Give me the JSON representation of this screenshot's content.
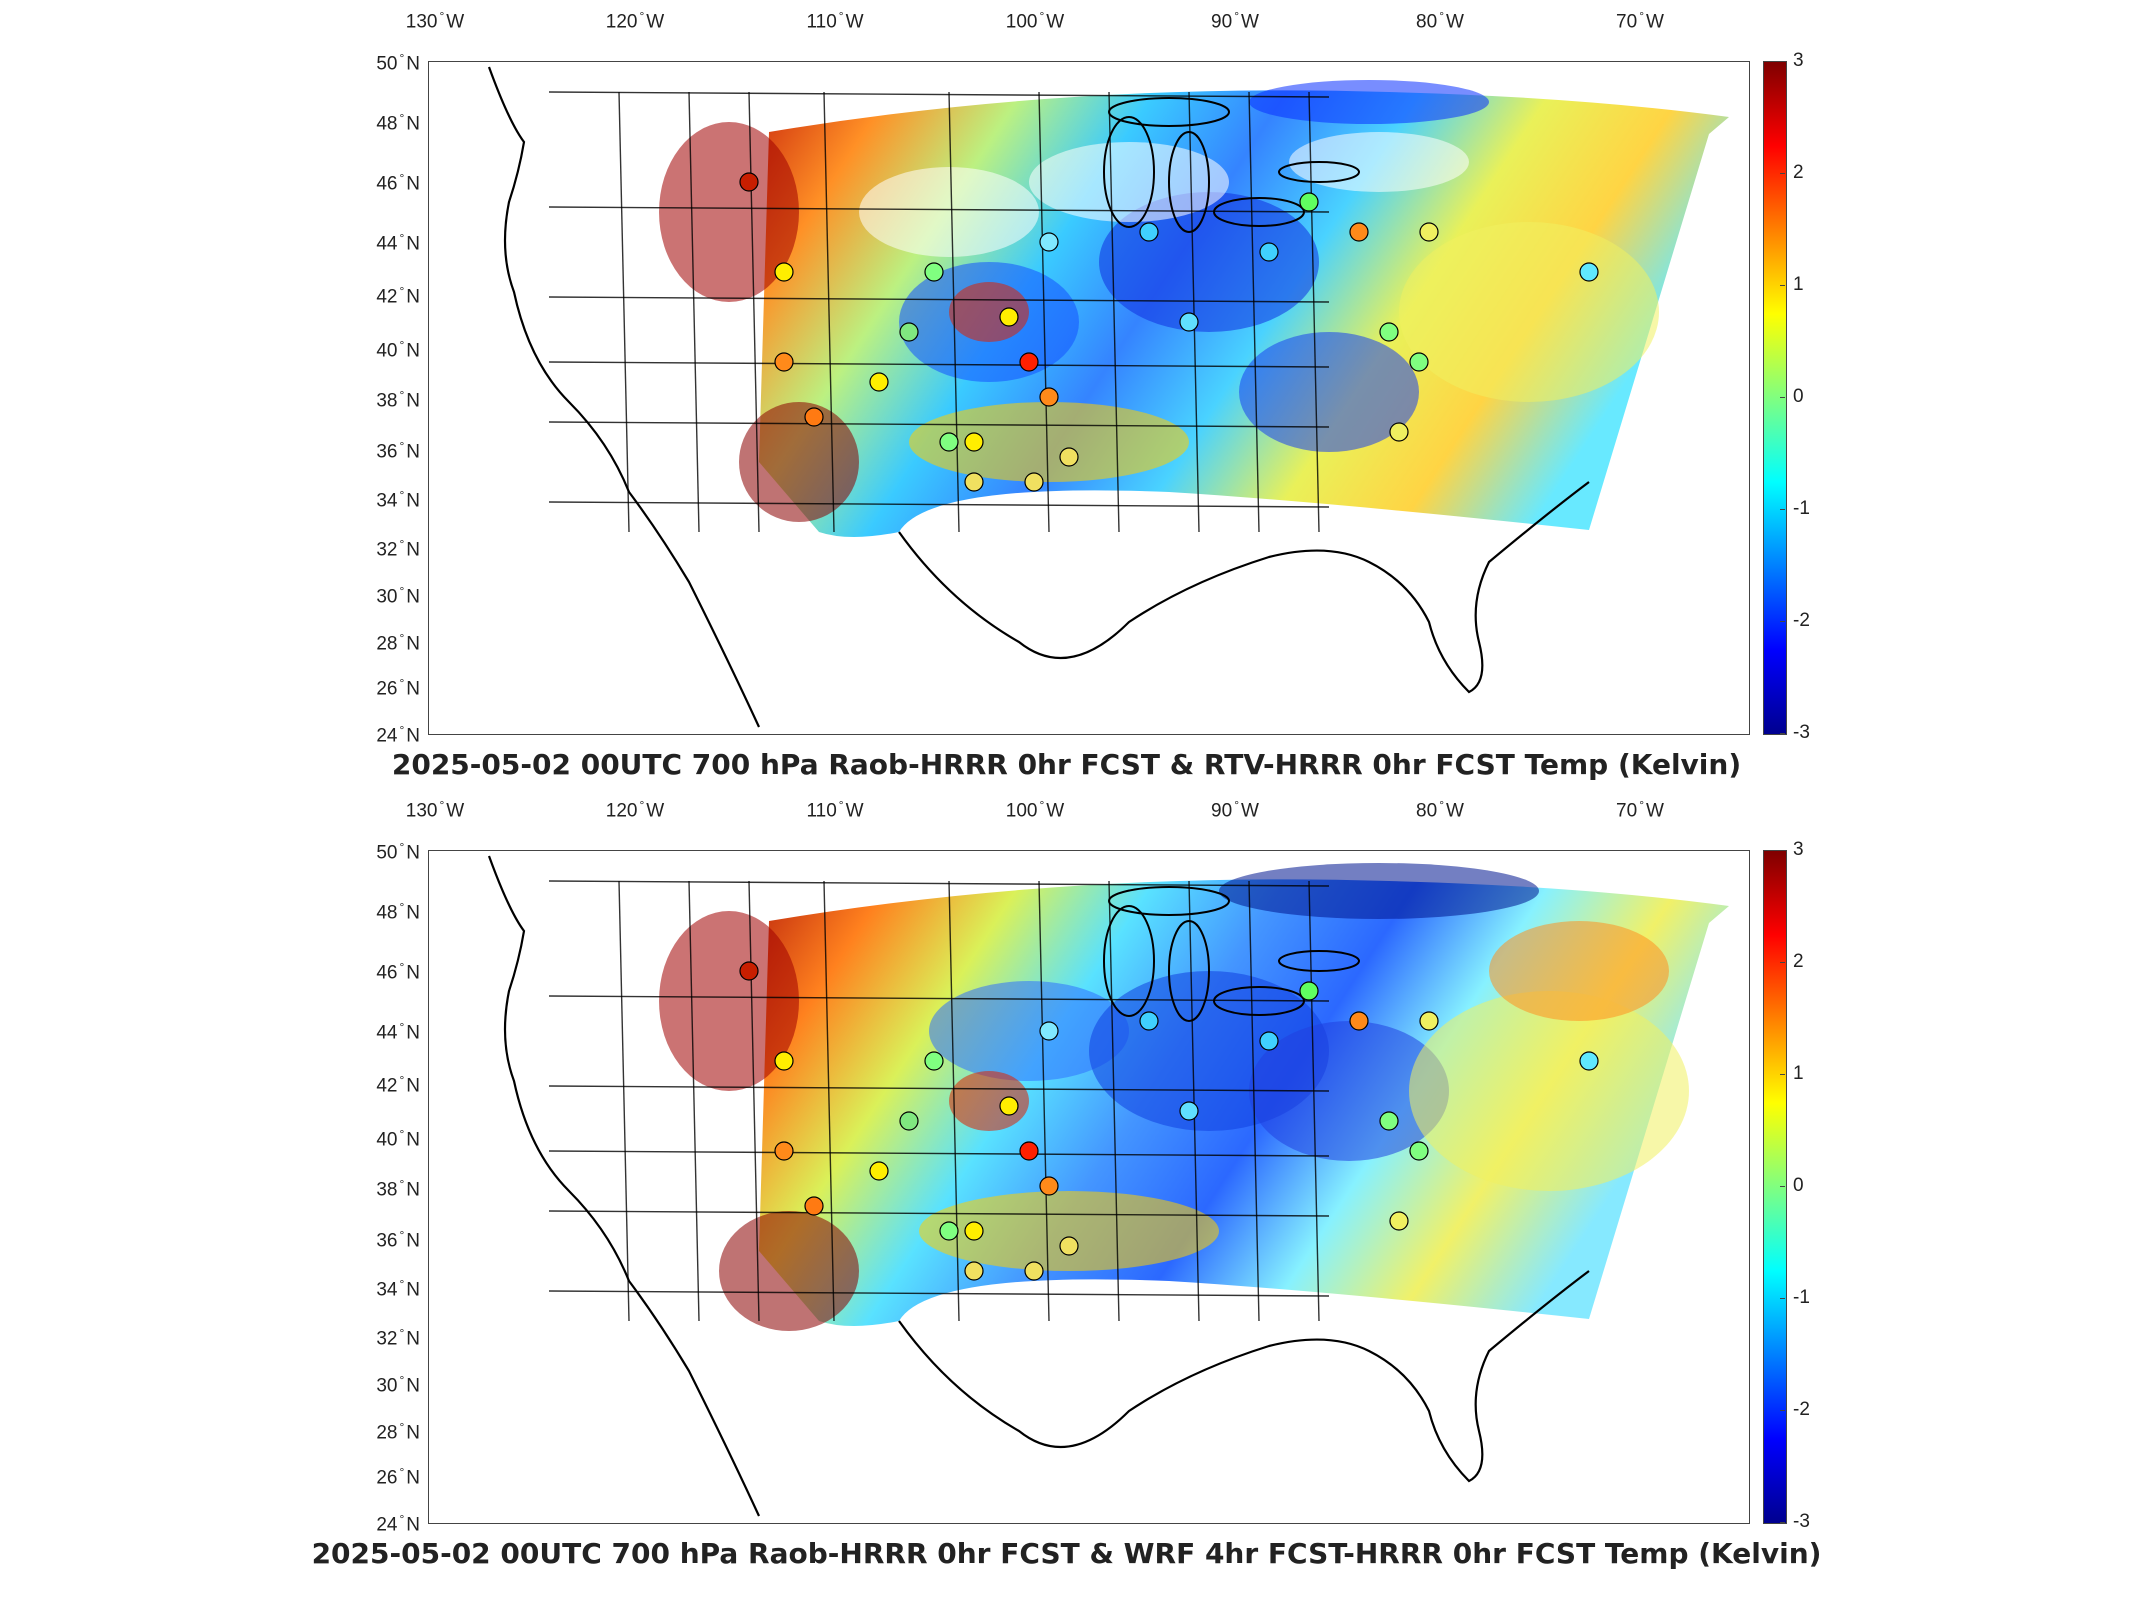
{
  "colorbar": {
    "min": -3,
    "max": 3,
    "ticks": [
      "3",
      "2",
      "1",
      "0",
      "-1",
      "-2",
      "-3"
    ],
    "colors": [
      "#7f0000",
      "#ff0000",
      "#ff8000",
      "#ffff00",
      "#80ff80",
      "#00ffff",
      "#0080ff",
      "#0000ff",
      "#00008f"
    ]
  },
  "lon_labels": [
    {
      "deg": "130",
      "dir": "W"
    },
    {
      "deg": "120",
      "dir": "W"
    },
    {
      "deg": "110",
      "dir": "W"
    },
    {
      "deg": "100",
      "dir": "W"
    },
    {
      "deg": "90",
      "dir": "W"
    },
    {
      "deg": "80",
      "dir": "W"
    },
    {
      "deg": "70",
      "dir": "W"
    }
  ],
  "lat_labels": [
    {
      "deg": "50",
      "dir": "N"
    },
    {
      "deg": "48",
      "dir": "N"
    },
    {
      "deg": "46",
      "dir": "N"
    },
    {
      "deg": "44",
      "dir": "N"
    },
    {
      "deg": "42",
      "dir": "N"
    },
    {
      "deg": "40",
      "dir": "N"
    },
    {
      "deg": "38",
      "dir": "N"
    },
    {
      "deg": "36",
      "dir": "N"
    },
    {
      "deg": "34",
      "dir": "N"
    },
    {
      "deg": "32",
      "dir": "N"
    },
    {
      "deg": "30",
      "dir": "N"
    },
    {
      "deg": "28",
      "dir": "N"
    },
    {
      "deg": "26",
      "dir": "N"
    },
    {
      "deg": "24",
      "dir": "N"
    }
  ],
  "panels": [
    {
      "title": "2025-05-02 00UTC 700 hPa Raob-HRRR 0hr FCST & RTV-HRRR 0hr FCST Temp (Kelvin)"
    },
    {
      "title": "2025-05-02 00UTC 700 hPa Raob-HRRR 0hr FCST & WRF 4hr FCST-HRRR 0hr FCST Temp (Kelvin)"
    }
  ]
}
